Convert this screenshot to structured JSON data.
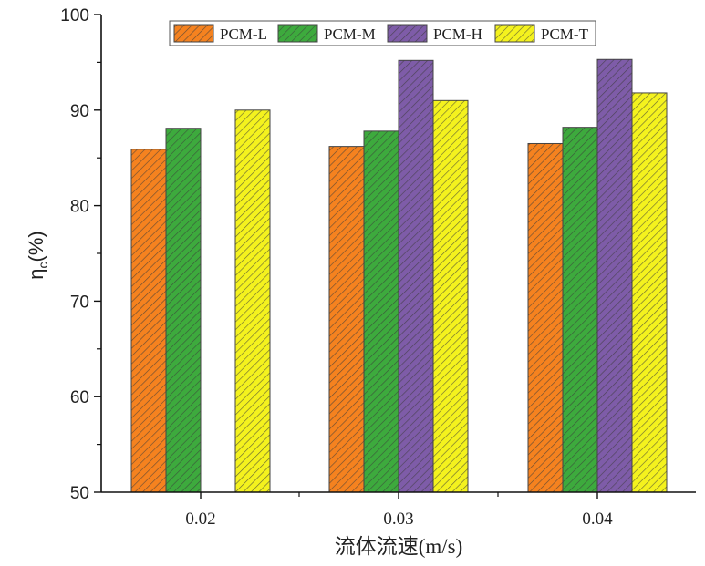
{
  "chart_data": {
    "type": "bar",
    "title": "",
    "xlabel": "流体流速(m/s)",
    "ylabel_main": "η",
    "ylabel_sub": "c",
    "ylabel_suffix": "(%)",
    "categories": [
      "0.02",
      "0.03",
      "0.04"
    ],
    "ylim": [
      50,
      100
    ],
    "yticks": [
      50,
      60,
      70,
      80,
      90,
      100
    ],
    "grid": false,
    "legend_position": "top",
    "series": [
      {
        "name": "PCM-L",
        "color": "#F5821F",
        "values": [
          85.9,
          86.2,
          86.5
        ]
      },
      {
        "name": "PCM-M",
        "color": "#3DAA3D",
        "values": [
          88.1,
          87.8,
          88.2
        ]
      },
      {
        "name": "PCM-H",
        "color": "#7E5CA8",
        "values": [
          null,
          95.2,
          95.3
        ]
      },
      {
        "name": "PCM-T",
        "color": "#F4F21E",
        "values": [
          90.0,
          91.0,
          91.8
        ]
      }
    ]
  }
}
